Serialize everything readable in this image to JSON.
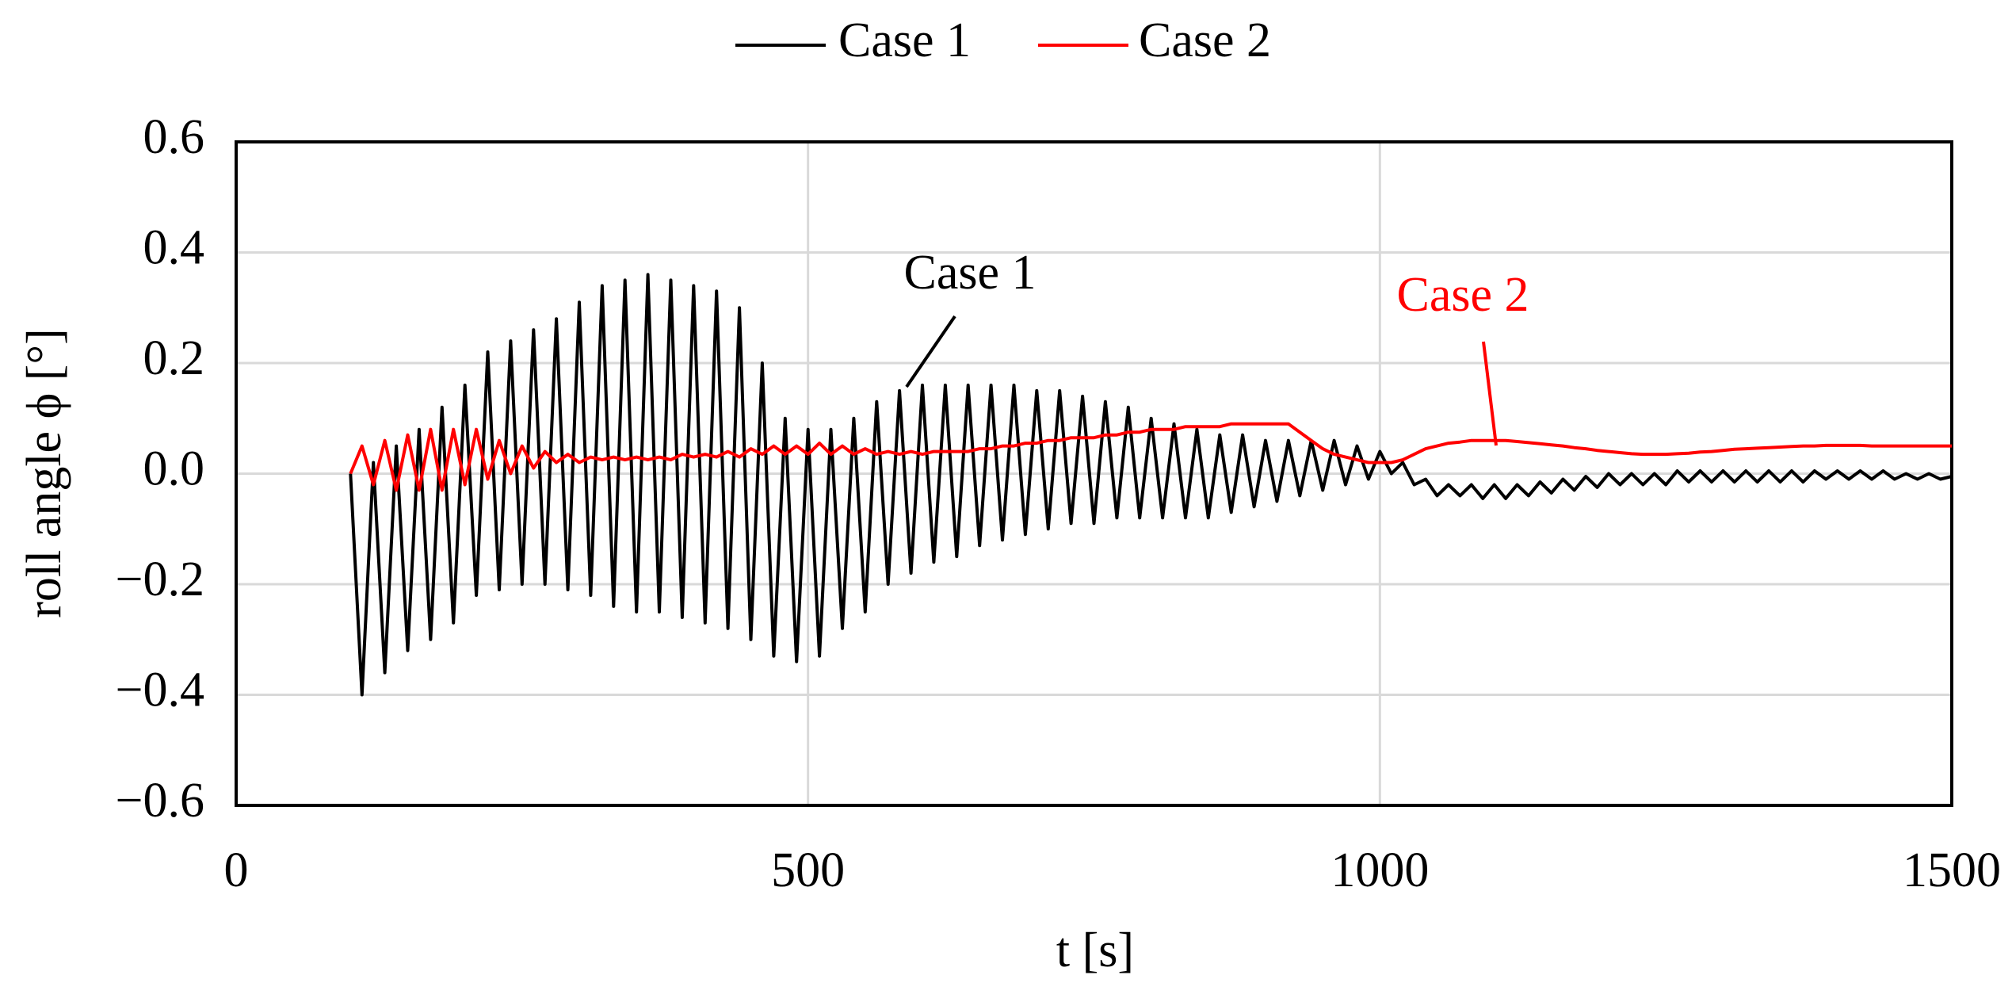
{
  "chart_data": {
    "type": "line",
    "xlabel": "t [s]",
    "ylabel": "roll angle ϕ [°]",
    "xlim": [
      0,
      1500
    ],
    "xticks": [
      0,
      500,
      1000,
      1500
    ],
    "ylim": [
      -0.6,
      0.6
    ],
    "yticks": [
      {
        "value": -0.6,
        "label": "−0.6"
      },
      {
        "value": -0.4,
        "label": "−0.4"
      },
      {
        "value": -0.2,
        "label": "−0.2"
      },
      {
        "value": 0,
        "label": "0.0"
      },
      0.2,
      0.4,
      0.6
    ],
    "grid": true,
    "legend": "top",
    "annotations": [
      "Case 1",
      "Case 2"
    ],
    "x": [
      100,
      110,
      120,
      130,
      140,
      150,
      160,
      170,
      180,
      190,
      200,
      210,
      220,
      230,
      240,
      250,
      260,
      270,
      280,
      290,
      300,
      310,
      320,
      330,
      340,
      350,
      360,
      370,
      380,
      390,
      400,
      410,
      420,
      430,
      440,
      450,
      460,
      470,
      480,
      490,
      500,
      510,
      520,
      530,
      540,
      550,
      560,
      570,
      580,
      590,
      600,
      610,
      620,
      630,
      640,
      650,
      660,
      670,
      680,
      690,
      700,
      710,
      720,
      730,
      740,
      750,
      760,
      770,
      780,
      790,
      800,
      810,
      820,
      830,
      840,
      850,
      860,
      870,
      880,
      890,
      900,
      910,
      920,
      930,
      940,
      950,
      960,
      970,
      980,
      990,
      1000,
      1010,
      1020,
      1030,
      1040,
      1050,
      1060,
      1070,
      1080,
      1090,
      1100,
      1110,
      1120,
      1130,
      1140,
      1150,
      1160,
      1170,
      1180,
      1190,
      1200,
      1210,
      1220,
      1230,
      1240,
      1250,
      1260,
      1270,
      1280,
      1290,
      1300,
      1310,
      1320,
      1330,
      1340,
      1350,
      1360,
      1370,
      1380,
      1390,
      1400,
      1410,
      1420,
      1430,
      1440,
      1450,
      1460,
      1470,
      1480,
      1490,
      1500
    ],
    "series": [
      {
        "name": "Case 1",
        "color": "#000000",
        "values": [
          0,
          -0.4,
          0.02,
          -0.36,
          0.05,
          -0.32,
          0.08,
          -0.3,
          0.12,
          -0.27,
          0.16,
          -0.22,
          0.22,
          -0.21,
          0.24,
          -0.2,
          0.26,
          -0.2,
          0.28,
          -0.21,
          0.31,
          -0.22,
          0.34,
          -0.24,
          0.35,
          -0.25,
          0.36,
          -0.25,
          0.35,
          -0.26,
          0.34,
          -0.27,
          0.33,
          -0.28,
          0.3,
          -0.3,
          0.2,
          -0.33,
          0.1,
          -0.34,
          0.08,
          -0.33,
          0.08,
          -0.28,
          0.1,
          -0.25,
          0.13,
          -0.2,
          0.15,
          -0.18,
          0.16,
          -0.16,
          0.16,
          -0.15,
          0.16,
          -0.13,
          0.16,
          -0.12,
          0.16,
          -0.11,
          0.15,
          -0.1,
          0.15,
          -0.09,
          0.14,
          -0.09,
          0.13,
          -0.08,
          0.12,
          -0.08,
          0.1,
          -0.08,
          0.09,
          -0.08,
          0.08,
          -0.08,
          0.07,
          -0.07,
          0.07,
          -0.06,
          0.06,
          -0.05,
          0.06,
          -0.04,
          0.06,
          -0.03,
          0.06,
          -0.02,
          0.05,
          -0.01,
          0.04,
          0,
          0.02,
          -0.02,
          -0.01,
          -0.04,
          -0.02,
          -0.04,
          -0.02,
          -0.045,
          -0.02,
          -0.045,
          -0.02,
          -0.04,
          -0.015,
          -0.035,
          -0.01,
          -0.03,
          -0.005,
          -0.025,
          0,
          -0.02,
          0,
          -0.02,
          0,
          -0.02,
          0.005,
          -0.015,
          0.005,
          -0.015,
          0.005,
          -0.015,
          0.005,
          -0.015,
          0.005,
          -0.015,
          0.005,
          -0.015,
          0.005,
          -0.01,
          0.005,
          -0.01,
          0.005,
          -0.01,
          0.005,
          -0.01,
          0,
          -0.01,
          0,
          -0.01,
          -0.005
        ]
      },
      {
        "name": "Case 2",
        "color": "#ff0000",
        "values": [
          0,
          0.05,
          -0.02,
          0.06,
          -0.03,
          0.07,
          -0.03,
          0.08,
          -0.03,
          0.08,
          -0.02,
          0.08,
          -0.01,
          0.06,
          0,
          0.05,
          0.01,
          0.04,
          0.02,
          0.035,
          0.02,
          0.03,
          0.025,
          0.03,
          0.025,
          0.03,
          0.025,
          0.03,
          0.025,
          0.035,
          0.03,
          0.035,
          0.03,
          0.04,
          0.03,
          0.045,
          0.035,
          0.05,
          0.035,
          0.05,
          0.035,
          0.055,
          0.035,
          0.05,
          0.035,
          0.045,
          0.035,
          0.04,
          0.035,
          0.04,
          0.035,
          0.04,
          0.04,
          0.04,
          0.04,
          0.045,
          0.045,
          0.05,
          0.05,
          0.055,
          0.055,
          0.06,
          0.06,
          0.065,
          0.065,
          0.065,
          0.07,
          0.07,
          0.075,
          0.075,
          0.08,
          0.08,
          0.08,
          0.085,
          0.085,
          0.085,
          0.085,
          0.09,
          0.09,
          0.09,
          0.09,
          0.09,
          0.09,
          0.075,
          0.06,
          0.045,
          0.035,
          0.03,
          0.025,
          0.02,
          0.02,
          0.02,
          0.025,
          0.035,
          0.045,
          0.05,
          0.055,
          0.057,
          0.06,
          0.06,
          0.06,
          0.06,
          0.058,
          0.056,
          0.054,
          0.052,
          0.05,
          0.047,
          0.045,
          0.042,
          0.04,
          0.038,
          0.036,
          0.035,
          0.035,
          0.035,
          0.036,
          0.037,
          0.039,
          0.04,
          0.042,
          0.044,
          0.045,
          0.046,
          0.047,
          0.048,
          0.049,
          0.05,
          0.05,
          0.051,
          0.051,
          0.051,
          0.051,
          0.05,
          0.05,
          0.05,
          0.05,
          0.05,
          0.05,
          0.05,
          0.05
        ]
      }
    ]
  }
}
